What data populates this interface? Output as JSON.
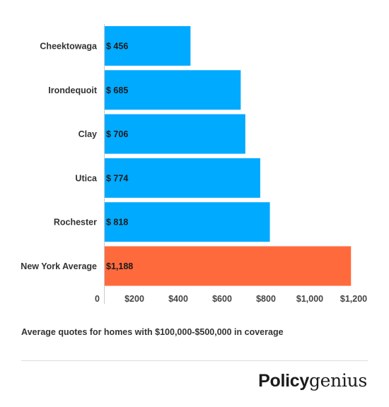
{
  "chart_data": {
    "type": "bar",
    "orientation": "horizontal",
    "categories": [
      "Cheektowaga",
      "Irondequoit",
      "Clay",
      "Utica",
      "Rochester",
      "New York Average"
    ],
    "values": [
      456,
      685,
      706,
      774,
      818,
      1188
    ],
    "value_labels": [
      "$ 456",
      "$ 685",
      "$ 706",
      "$ 774",
      "$ 818",
      "$1,188"
    ],
    "bar_colors": [
      "#00aaff",
      "#00aaff",
      "#00aaff",
      "#00aaff",
      "#00aaff",
      "#ff6a3d"
    ],
    "x_ticks": [
      0,
      200,
      400,
      600,
      800,
      1000,
      1200
    ],
    "x_tick_labels": [
      "0",
      "$200",
      "$400",
      "$600",
      "$800",
      "$1,000",
      "$1,200"
    ],
    "xlim": [
      0,
      1200
    ],
    "grid": false,
    "legend": "none"
  },
  "caption": "Average quotes for homes with $100,000-$500,000 in coverage",
  "logo": {
    "bold_part": "Policy",
    "serif_part": "genius"
  }
}
